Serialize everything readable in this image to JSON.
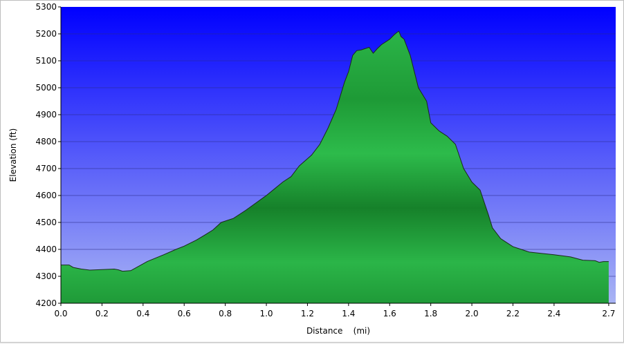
{
  "chart_data": {
    "type": "area",
    "title": "",
    "xlabel": "Distance    (mi)",
    "ylabel": "Elevation (ft)",
    "xlim": [
      0,
      2.7
    ],
    "ylim": [
      4200,
      5300
    ],
    "x_ticks": [
      "0.0",
      "0.2",
      "0.4",
      "0.6",
      "0.8",
      "1.0",
      "1.2",
      "1.4",
      "1.6",
      "1.8",
      "2.0",
      "2.2",
      "2.4",
      "2.7"
    ],
    "x_tick_values": [
      0,
      0.2,
      0.4,
      0.6,
      0.8,
      1.0,
      1.2,
      1.4,
      1.6,
      1.8,
      2.0,
      2.2,
      2.4,
      2.666
    ],
    "y_ticks": [
      "4200",
      "4300",
      "4400",
      "4500",
      "4600",
      "4700",
      "4800",
      "4900",
      "5000",
      "5100",
      "5200",
      "5300"
    ],
    "grid": true,
    "colors": {
      "bg_top": "#0000ff",
      "bg_bottom": "#a9b4f4",
      "fill_light": "#2bb548",
      "fill_dark": "#157a28",
      "outline": "#1b2a1b"
    },
    "series": [
      {
        "x": [
          0,
          0.04,
          0.06,
          0.1,
          0.14,
          0.2,
          0.26,
          0.28,
          0.3,
          0.34,
          0.38,
          0.42,
          0.5,
          0.56,
          0.6,
          0.66,
          0.7,
          0.74,
          0.78,
          0.84,
          0.9,
          1.0,
          1.04,
          1.08,
          1.12,
          1.16,
          1.22,
          1.26,
          1.3,
          1.34,
          1.38,
          1.4,
          1.42,
          1.44,
          1.46,
          1.5,
          1.52,
          1.54,
          1.56,
          1.6,
          1.62,
          1.635,
          1.645,
          1.655,
          1.67,
          1.7,
          1.74,
          1.78,
          1.8,
          1.84,
          1.88,
          1.92,
          1.96,
          2.0,
          2.04,
          2.08,
          2.1,
          2.14,
          2.16,
          2.2,
          2.24,
          2.28,
          2.34,
          2.4,
          2.48,
          2.54,
          2.6,
          2.62,
          2.64,
          2.666
        ],
        "y": [
          4342,
          4342,
          4333,
          4327,
          4323,
          4325,
          4327,
          4324,
          4319,
          4321,
          4338,
          4355,
          4380,
          4400,
          4412,
          4435,
          4453,
          4472,
          4500,
          4515,
          4545,
          4600,
          4625,
          4650,
          4670,
          4710,
          4750,
          4790,
          4850,
          4920,
          5020,
          5060,
          5120,
          5138,
          5140,
          5150,
          5128,
          5145,
          5160,
          5180,
          5195,
          5205,
          5210,
          5190,
          5180,
          5120,
          5000,
          4950,
          4870,
          4840,
          4820,
          4790,
          4700,
          4650,
          4620,
          4530,
          4480,
          4440,
          4430,
          4410,
          4400,
          4390,
          4385,
          4380,
          4372,
          4360,
          4358,
          4352,
          4355,
          4355
        ]
      }
    ]
  }
}
